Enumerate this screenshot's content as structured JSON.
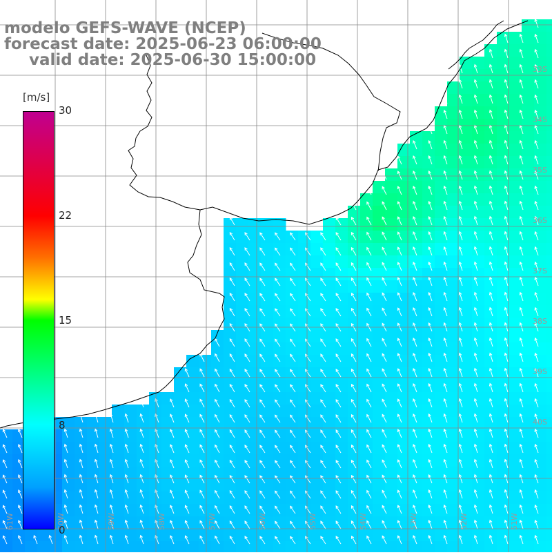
{
  "title": {
    "line1": "modelo GEFS-WAVE (NCEP)",
    "line2": "forecast date: 2025-06-23 06:00:00",
    "line3": "valid date: 2025-06-30 15:00:00"
  },
  "colorbar": {
    "unit": "[m/s]",
    "ticks": [
      "30",
      "22",
      "15",
      "8",
      "0"
    ],
    "min": 0,
    "max": 30
  },
  "latitude_labels": [
    "33S",
    "34S",
    "35S",
    "36S",
    "37S",
    "38S",
    "39S",
    "40S"
  ],
  "longitude_labels": [
    "61W",
    "60W",
    "59W",
    "58W",
    "57W",
    "56W",
    "55W",
    "54W",
    "53W",
    "52W",
    "51W"
  ],
  "colors": {
    "land": "#ffffff",
    "coastline": "#000000",
    "grid": "#888888",
    "title": "#7f7f7f",
    "arrows": "#ffffff"
  },
  "icons": {
    "wind_arrow": "arrow-icon"
  }
}
